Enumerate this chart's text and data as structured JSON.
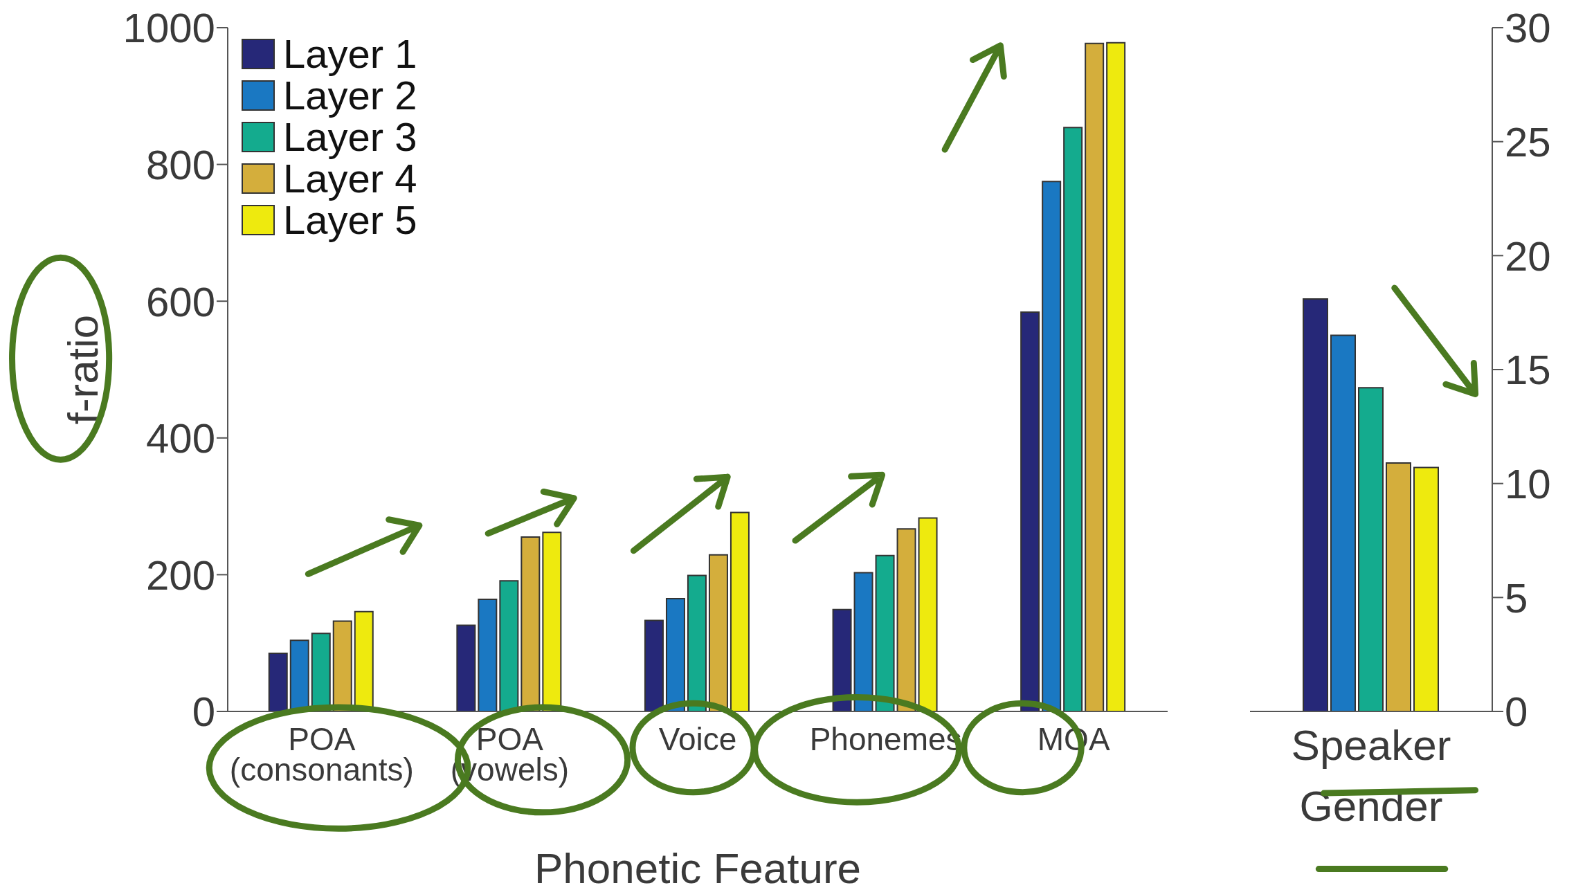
{
  "chart_data": [
    {
      "type": "bar",
      "categories": [
        "POA (consonants)",
        "POA (vowels)",
        "Voice",
        "Phonemes",
        "MOA"
      ],
      "xlabel": "Phonetic Feature",
      "ylabel": "f-ratio",
      "ylim": [
        0,
        1000
      ],
      "yticks": [
        0,
        200,
        400,
        600,
        800,
        1000
      ],
      "legend": "top left",
      "series": [
        {
          "name": "Layer 1",
          "color": "#262878",
          "values": [
            85,
            126,
            133,
            149,
            584
          ]
        },
        {
          "name": "Layer 2",
          "color": "#1a78c2",
          "values": [
            104,
            164,
            165,
            203,
            775
          ]
        },
        {
          "name": "Layer 3",
          "color": "#14ab8e",
          "values": [
            114,
            191,
            199,
            228,
            854
          ]
        },
        {
          "name": "Layer 4",
          "color": "#d4ae3c",
          "values": [
            132,
            255,
            229,
            267,
            977
          ]
        },
        {
          "name": "Layer 5",
          "color": "#eeea0e",
          "values": [
            146,
            262,
            291,
            283,
            978
          ]
        }
      ]
    },
    {
      "type": "bar",
      "categories": [
        null
      ],
      "xlabel": "Speaker Gender",
      "ylim": [
        0,
        30
      ],
      "yticks": [
        0,
        5,
        10,
        15,
        20,
        25,
        30
      ],
      "series": [
        {
          "color": "#262878",
          "values": [
            18.1
          ]
        },
        {
          "color": "#1a78c2",
          "values": [
            16.5
          ]
        },
        {
          "color": "#14ab8e",
          "values": [
            14.2
          ]
        },
        {
          "color": "#d4ae3c",
          "values": [
            10.9
          ]
        },
        {
          "color": "#eeea0e",
          "values": [
            10.7
          ]
        }
      ]
    }
  ]
}
